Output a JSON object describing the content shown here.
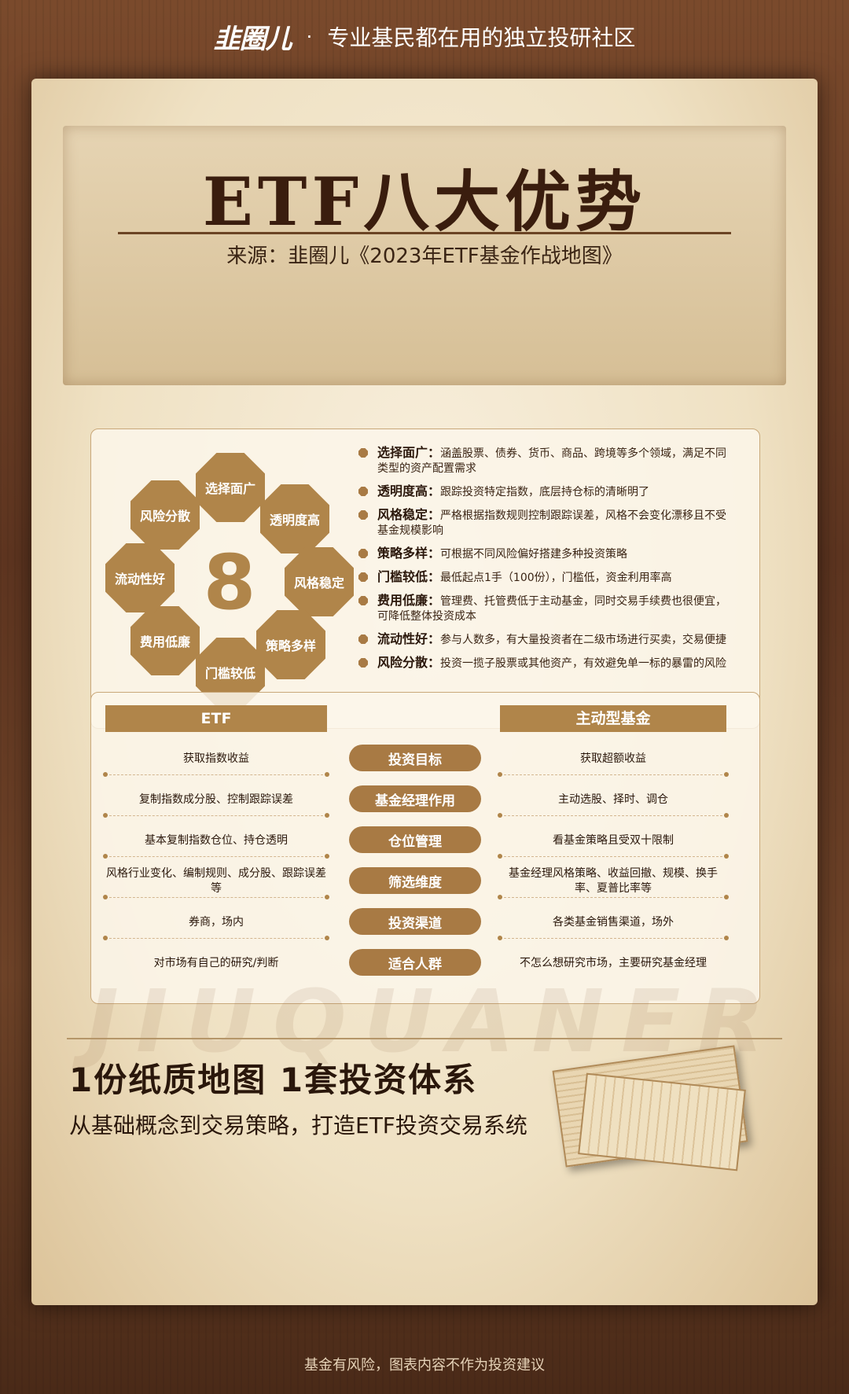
{
  "topbar": {
    "logo": "韭圈儿",
    "separator": "·",
    "tagline": "专业基民都在用的独立投研社区"
  },
  "header": {
    "title": "ETF八大优势",
    "source": "来源：韭圈儿《2023年ETF基金作战地图》"
  },
  "advantages": {
    "center_number": "8",
    "octagons": [
      "选择面广",
      "透明度高",
      "风格稳定",
      "策略多样",
      "门槛较低",
      "费用低廉",
      "流动性好",
      "风险分散"
    ],
    "items": [
      {
        "term": "选择面广：",
        "desc": "涵盖股票、债券、货币、商品、跨境等多个领域，满足不同类型的资产配置需求"
      },
      {
        "term": "透明度高：",
        "desc": "跟踪投资特定指数，底层持仓标的清晰明了"
      },
      {
        "term": "风格稳定：",
        "desc": "严格根据指数规则控制跟踪误差，风格不会变化漂移且不受基金规模影响"
      },
      {
        "term": "策略多样：",
        "desc": "可根据不同风险偏好搭建多种投资策略"
      },
      {
        "term": "门槛较低：",
        "desc": "最低起点1手（100份），门槛低，资金利用率高"
      },
      {
        "term": "费用低廉：",
        "desc": "管理费、托管费低于主动基金，同时交易手续费也很便宜，可降低整体投资成本"
      },
      {
        "term": "流动性好：",
        "desc": "参与人数多，有大量投资者在二级市场进行买卖，交易便捷"
      },
      {
        "term": "风险分散：",
        "desc": "投资一揽子股票或其他资产，有效避免单一标的暴雷的风险"
      }
    ]
  },
  "comparison": {
    "left_header": "ETF",
    "right_header": "主动型基金",
    "rows": [
      {
        "left": "获取指数收益",
        "mid": "投资目标",
        "right": "获取超额收益"
      },
      {
        "left": "复制指数成分股、控制跟踪误差",
        "mid": "基金经理作用",
        "right": "主动选股、择时、调仓"
      },
      {
        "left": "基本复制指数仓位、持仓透明",
        "mid": "仓位管理",
        "right": "看基金策略且受双十限制"
      },
      {
        "left": "风格行业变化、编制规则、成分股、跟踪误差等",
        "mid": "筛选维度",
        "right": "基金经理风格策略、收益回撤、规模、换手率、夏普比率等"
      },
      {
        "left": "券商，场内",
        "mid": "投资渠道",
        "right": "各类基金销售渠道，场外"
      },
      {
        "left": "对市场有自己的研究/判断",
        "mid": "适合人群",
        "right": "不怎么想研究市场，主要研究基金经理"
      }
    ]
  },
  "watermark": "JIUQUANER",
  "promo": {
    "title": "1份纸质地图 1套投资体系",
    "subtitle": "从基础概念到交易策略，打造ETF投资交易系统"
  },
  "footer": "基金有风险，图表内容不作为投资建议",
  "colors": {
    "accent": "#b0854a",
    "dark_text": "#2a170b",
    "wood": "#5a3420",
    "paper": "#f3e7cf"
  }
}
